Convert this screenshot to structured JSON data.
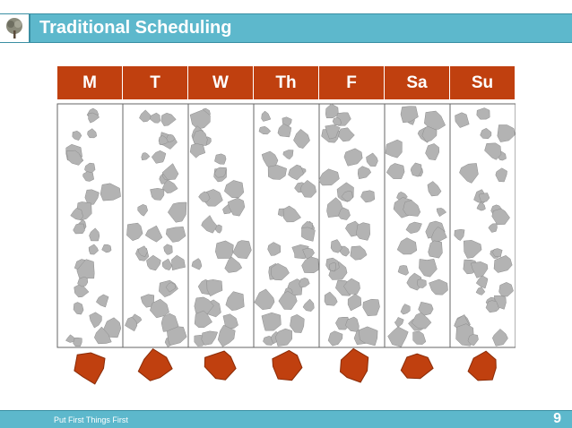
{
  "header": {
    "title": "Traditional Scheduling",
    "logo_icon": "tree-icon"
  },
  "schedule": {
    "days": [
      {
        "label": "M"
      },
      {
        "label": "T"
      },
      {
        "label": "W"
      },
      {
        "label": "Th"
      },
      {
        "label": "F"
      },
      {
        "label": "Sa"
      },
      {
        "label": "Su"
      }
    ],
    "small_rock_color": "#b3b3b3",
    "big_rock_color": "#c0400f",
    "header_color": "#c0400f"
  },
  "footer": {
    "text": "Put First Things First",
    "page_number": "9"
  },
  "colors": {
    "bar": "#5db8cc",
    "bar_border": "#3a8fa3"
  }
}
